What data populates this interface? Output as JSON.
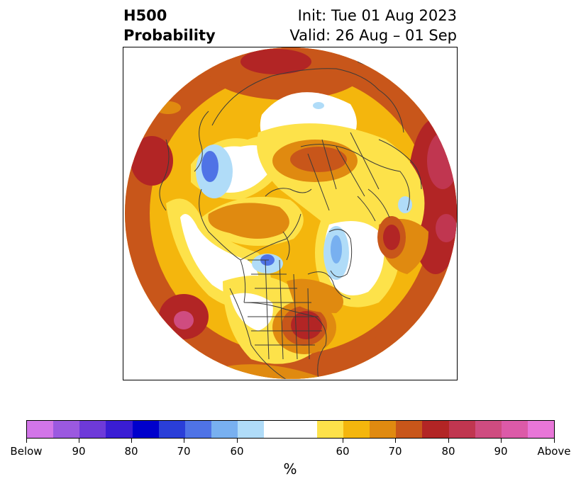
{
  "header": {
    "title_left": "H500\nProbability",
    "init_line": "Init: Tue 01 Aug 2023",
    "valid_line": "Valid: 26 Aug – 01 Sep"
  },
  "map": {
    "projection": "north-polar-stereographic",
    "palette": {
      "below": [
        "#d275e8",
        "#9b59e0",
        "#6e3ad9",
        "#3a1dd4",
        "#0000cc",
        "#2a3ed8",
        "#4f73e6",
        "#78b0f0",
        "#b0dcf8"
      ],
      "neutral": "#ffffff",
      "above": [
        "#fde24a",
        "#f4b60d",
        "#e08a10",
        "#c8561a",
        "#b22525",
        "#c03650",
        "#cf4c80",
        "#dc5aa8",
        "#e876d8"
      ]
    }
  },
  "colorbar": {
    "segments": [
      "#d275e8",
      "#9b59e0",
      "#6e3ad9",
      "#3a1dd4",
      "#0000cc",
      "#2a3ed8",
      "#4f73e6",
      "#78b0f0",
      "#b0dcf8",
      "#ffffff",
      "#ffffff",
      "#fde24a",
      "#f4b60d",
      "#e08a10",
      "#c8561a",
      "#b22525",
      "#c03650",
      "#cf4c80",
      "#dc5aa8",
      "#e876d8"
    ],
    "ticks": [
      "Below",
      "90",
      "80",
      "70",
      "60",
      "60",
      "70",
      "80",
      "90",
      "Above"
    ],
    "unit": "%"
  }
}
